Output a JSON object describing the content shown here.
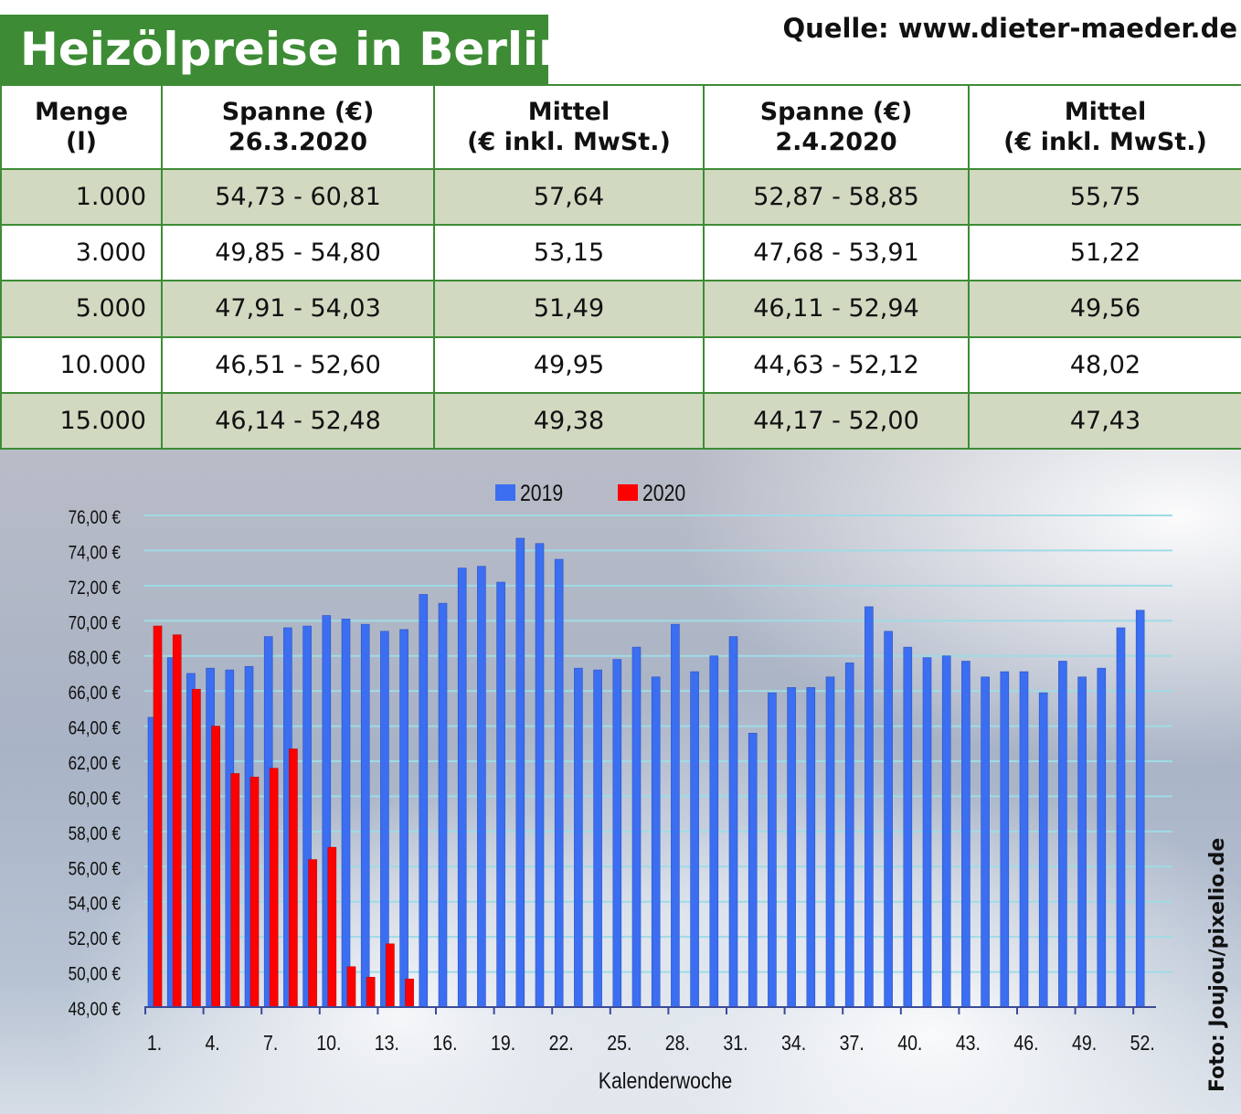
{
  "title": "Heizölpreise in Berlin",
  "source": "Quelle: www.dieter-maeder.de",
  "photo_credit": "Foto: Joujou/pixelio.de",
  "colors": {
    "title_bg": "#3d8c35",
    "row_shade": "#d1d9c1",
    "series_2019": "#3b6ef0",
    "series_2020": "#ff0000",
    "grid": "#9fdbe6"
  },
  "table": {
    "headers": [
      [
        "Menge",
        "(l)"
      ],
      [
        "Spanne (€)",
        "26.3.2020"
      ],
      [
        "Mittel",
        "(€ inkl. MwSt.)"
      ],
      [
        "Spanne (€)",
        "2.4.2020"
      ],
      [
        "Mittel",
        "(€ inkl. MwSt.)"
      ]
    ],
    "rows": [
      [
        "1.000",
        "54,73 - 60,81",
        "57,64",
        "52,87 - 58,85",
        "55,75"
      ],
      [
        "3.000",
        "49,85 - 54,80",
        "53,15",
        "47,68 - 53,91",
        "51,22"
      ],
      [
        "5.000",
        "47,91 - 54,03",
        "51,49",
        "46,11 - 52,94",
        "49,56"
      ],
      [
        "10.000",
        "46,51 - 52,60",
        "49,95",
        "44,63 - 52,12",
        "48,02"
      ],
      [
        "15.000",
        "46,14 - 52,48",
        "49,38",
        "44,17 - 52,00",
        "47,43"
      ]
    ]
  },
  "chart_data": {
    "type": "bar",
    "xlabel": "Kalenderwoche",
    "ylabel": "",
    "ylim": [
      48,
      76
    ],
    "y_ticks": [
      76,
      74,
      72,
      70,
      68,
      66,
      64,
      62,
      60,
      58,
      56,
      54,
      52,
      50,
      48
    ],
    "y_tick_labels": [
      "76,00 €",
      "74,00 €",
      "72,00 €",
      "70,00 €",
      "68,00 €",
      "66,00 €",
      "64,00 €",
      "62,00 €",
      "60,00 €",
      "58,00 €",
      "56,00 €",
      "54,00 €",
      "52,00 €",
      "50,00 €",
      "48,00 €"
    ],
    "x_tick_labels": [
      "1.",
      "4.",
      "7.",
      "10.",
      "13.",
      "16.",
      "19.",
      "22.",
      "25.",
      "28.",
      "31.",
      "34.",
      "37.",
      "40.",
      "43.",
      "46.",
      "49.",
      "52."
    ],
    "x_tick_weeks": [
      1,
      4,
      7,
      10,
      13,
      16,
      19,
      22,
      25,
      28,
      31,
      34,
      37,
      40,
      43,
      46,
      49,
      52
    ],
    "grid": true,
    "legend": "top-center",
    "series": [
      {
        "name": "2019",
        "color": "#3b6ef0",
        "values": [
          64.5,
          67.9,
          67.0,
          67.3,
          67.2,
          67.4,
          69.1,
          69.6,
          69.7,
          70.3,
          70.1,
          69.8,
          69.4,
          69.5,
          71.5,
          71.0,
          73.0,
          73.1,
          72.2,
          74.7,
          74.4,
          73.5,
          67.3,
          67.2,
          67.8,
          68.5,
          66.8,
          69.8,
          67.1,
          68.0,
          69.1,
          63.6,
          65.9,
          66.2,
          66.2,
          66.8,
          67.6,
          70.8,
          69.4,
          68.5,
          67.9,
          68.0,
          67.7,
          66.8,
          67.1,
          67.1,
          65.9,
          67.7,
          66.8,
          67.3,
          69.6,
          70.6
        ]
      },
      {
        "name": "2020",
        "color": "#ff0000",
        "values": [
          69.7,
          69.2,
          66.1,
          64.0,
          61.3,
          61.1,
          61.6,
          62.7,
          56.4,
          57.1,
          50.3,
          49.7,
          51.6,
          49.6
        ]
      }
    ]
  }
}
